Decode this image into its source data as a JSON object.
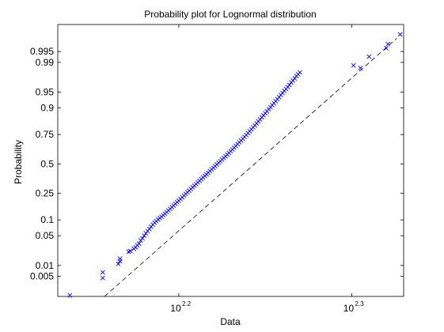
{
  "chart_data": {
    "type": "scatter",
    "title": "Probability plot for Lognormal distribution",
    "xlabel": "Data",
    "ylabel": "Probability",
    "x_scale": "log",
    "y_scale": "normal-probability",
    "xlim": [
      2.13,
      2.33
    ],
    "ylim": [
      0.0012,
      0.9993
    ],
    "x_ticks": [
      {
        "base": "10",
        "exp": "2.2",
        "value": 2.2
      },
      {
        "base": "10",
        "exp": "2.3",
        "value": 2.3
      }
    ],
    "y_ticks": [
      "0.005",
      "0.01",
      "0.05",
      "0.1",
      "0.25",
      "0.5",
      "0.75",
      "0.9",
      "0.95",
      "0.99",
      "0.995"
    ],
    "grid": false,
    "marker": "x",
    "marker_color": "#0000ff",
    "reference_line": {
      "style": "dashed",
      "color": "#000000",
      "from": [
        2.157,
        0.0012
      ],
      "to": [
        2.326,
        0.998
      ]
    },
    "points": [
      [
        2.137,
        0.0013
      ],
      [
        2.156,
        0.0045
      ],
      [
        2.156,
        0.0065
      ],
      [
        2.165,
        0.011
      ],
      [
        2.166,
        0.013
      ],
      [
        2.166,
        0.015
      ],
      [
        2.171,
        0.022
      ],
      [
        2.172,
        0.023
      ],
      [
        2.174,
        0.026
      ],
      [
        2.175,
        0.028
      ],
      [
        2.176,
        0.031
      ],
      [
        2.177,
        0.034
      ],
      [
        2.178,
        0.04
      ],
      [
        2.179,
        0.044
      ],
      [
        2.18,
        0.05
      ],
      [
        2.181,
        0.056
      ],
      [
        2.182,
        0.062
      ],
      [
        2.183,
        0.068
      ],
      [
        2.184,
        0.075
      ],
      [
        2.185,
        0.082
      ],
      [
        2.186,
        0.089
      ],
      [
        2.187,
        0.095
      ],
      [
        2.188,
        0.101
      ],
      [
        2.189,
        0.107
      ],
      [
        2.19,
        0.113
      ],
      [
        2.191,
        0.12
      ],
      [
        2.192,
        0.127
      ],
      [
        2.193,
        0.135
      ],
      [
        2.194,
        0.143
      ],
      [
        2.195,
        0.152
      ],
      [
        2.196,
        0.161
      ],
      [
        2.197,
        0.17
      ],
      [
        2.198,
        0.18
      ],
      [
        2.199,
        0.19
      ],
      [
        2.2,
        0.2
      ],
      [
        2.201,
        0.211
      ],
      [
        2.202,
        0.222
      ],
      [
        2.203,
        0.234
      ],
      [
        2.204,
        0.246
      ],
      [
        2.205,
        0.258
      ],
      [
        2.206,
        0.27
      ],
      [
        2.207,
        0.283
      ],
      [
        2.208,
        0.296
      ],
      [
        2.209,
        0.309
      ],
      [
        2.21,
        0.322
      ],
      [
        2.211,
        0.336
      ],
      [
        2.212,
        0.35
      ],
      [
        2.213,
        0.364
      ],
      [
        2.214,
        0.378
      ],
      [
        2.215,
        0.392
      ],
      [
        2.216,
        0.406
      ],
      [
        2.217,
        0.42
      ],
      [
        2.218,
        0.435
      ],
      [
        2.219,
        0.45
      ],
      [
        2.22,
        0.465
      ],
      [
        2.221,
        0.48
      ],
      [
        2.222,
        0.495
      ],
      [
        2.223,
        0.51
      ],
      [
        2.224,
        0.525
      ],
      [
        2.225,
        0.54
      ],
      [
        2.226,
        0.555
      ],
      [
        2.227,
        0.57
      ],
      [
        2.228,
        0.585
      ],
      [
        2.229,
        0.6
      ],
      [
        2.23,
        0.615
      ],
      [
        2.231,
        0.63
      ],
      [
        2.232,
        0.645
      ],
      [
        2.233,
        0.66
      ],
      [
        2.234,
        0.675
      ],
      [
        2.235,
        0.69
      ],
      [
        2.236,
        0.704
      ],
      [
        2.237,
        0.718
      ],
      [
        2.238,
        0.732
      ],
      [
        2.239,
        0.746
      ],
      [
        2.24,
        0.76
      ],
      [
        2.241,
        0.773
      ],
      [
        2.242,
        0.786
      ],
      [
        2.243,
        0.799
      ],
      [
        2.244,
        0.811
      ],
      [
        2.245,
        0.823
      ],
      [
        2.246,
        0.835
      ],
      [
        2.247,
        0.846
      ],
      [
        2.248,
        0.857
      ],
      [
        2.249,
        0.867
      ],
      [
        2.25,
        0.877
      ],
      [
        2.251,
        0.886
      ],
      [
        2.252,
        0.895
      ],
      [
        2.253,
        0.903
      ],
      [
        2.254,
        0.911
      ],
      [
        2.255,
        0.918
      ],
      [
        2.256,
        0.925
      ],
      [
        2.257,
        0.931
      ],
      [
        2.258,
        0.937
      ],
      [
        2.259,
        0.943
      ],
      [
        2.26,
        0.948
      ],
      [
        2.261,
        0.953
      ],
      [
        2.262,
        0.957
      ],
      [
        2.263,
        0.961
      ],
      [
        2.264,
        0.965
      ],
      [
        2.265,
        0.969
      ],
      [
        2.266,
        0.972
      ],
      [
        2.267,
        0.975
      ],
      [
        2.268,
        0.978
      ],
      [
        2.269,
        0.98
      ],
      [
        2.27,
        0.982
      ],
      [
        2.301,
        0.988
      ],
      [
        2.305,
        0.986
      ],
      [
        2.31,
        0.993
      ],
      [
        2.32,
        0.996
      ],
      [
        2.321,
        0.997
      ],
      [
        2.328,
        0.9985
      ]
    ]
  }
}
